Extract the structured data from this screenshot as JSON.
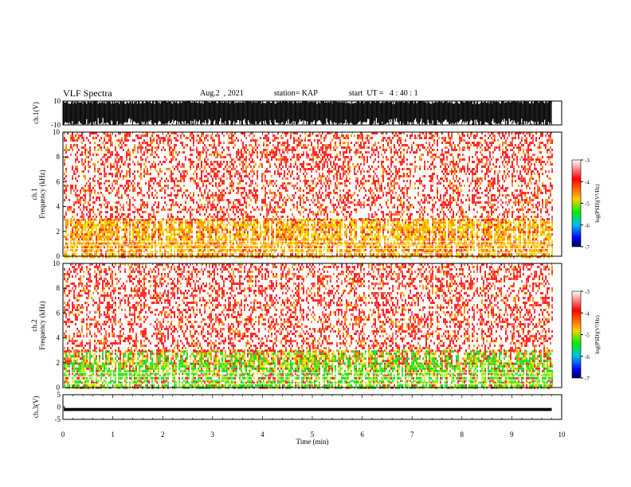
{
  "header": {
    "title": "VLF Spectra",
    "date": "Aug.2  , 2021",
    "station": "station= KAP",
    "start_ut": "start  UT =   4 : 40 : 1"
  },
  "colors": {
    "background": "#ffffff",
    "ink": "#000000",
    "spec_low": "#ffffff",
    "spec_mid": "#ff2a2a",
    "spec_orange": "#ff9900",
    "spec_yellow": "#e6e600",
    "spec_green": "#22dd22"
  },
  "chart_data": [
    {
      "id": "ch1_waveform",
      "type": "line",
      "ylabel": "ch.1(V)",
      "xlim": [
        0,
        10
      ],
      "ylim": [
        -10,
        10
      ],
      "yticks": [
        "10",
        "-10"
      ],
      "description_values": {
        "amplitude_range_V": [
          -10,
          10
        ],
        "duration_min": 9.8
      }
    },
    {
      "id": "ch1_spectrogram",
      "type": "heatmap",
      "ylabel": "ch.1\nFrequency  (kHz)",
      "xlim": [
        0,
        10
      ],
      "ylim": [
        0,
        10
      ],
      "yticks": [
        "0",
        "2",
        "4",
        "6",
        "8",
        "10"
      ],
      "data_extent_min": 9.8,
      "bands_kHz": [
        {
          "from": 0.0,
          "to": 1.0,
          "level": "yellow-orange"
        },
        {
          "from": 1.0,
          "to": 3.0,
          "level": "yellow-orange"
        },
        {
          "from": 3.0,
          "to": 10.0,
          "level": "red"
        }
      ],
      "colorbar": {
        "label": "log(PSD)(V²/Hz)",
        "range": [
          -7,
          -3
        ],
        "ticks": [
          "-3",
          "-4",
          "-5",
          "-6",
          "-7"
        ]
      }
    },
    {
      "id": "ch2_spectrogram",
      "type": "heatmap",
      "ylabel": "ch.2\nFrequency  (kHz)",
      "xlim": [
        0,
        10
      ],
      "ylim": [
        0,
        10
      ],
      "yticks": [
        "0",
        "2",
        "4",
        "6",
        "8",
        "10"
      ],
      "data_extent_min": 9.8,
      "bands_kHz": [
        {
          "from": 0.0,
          "to": 2.0,
          "level": "green"
        },
        {
          "from": 2.0,
          "to": 3.0,
          "level": "green-yellow"
        },
        {
          "from": 3.0,
          "to": 10.0,
          "level": "red"
        }
      ],
      "colorbar": {
        "label": "log(PSD)(V²/Hz)",
        "range": [
          -7,
          -3
        ],
        "ticks": [
          "-3",
          "-4",
          "-5",
          "-6",
          "-7"
        ]
      }
    },
    {
      "id": "ch3_waveform",
      "type": "line",
      "ylabel": "ch.3(V)",
      "xlim": [
        0,
        10
      ],
      "ylim": [
        -5,
        5
      ],
      "yticks": [
        "5",
        "0",
        "-5"
      ],
      "description_values": {
        "center_V": -1.0,
        "amplitude_V": 0.6
      }
    }
  ],
  "x_axis": {
    "label": "Time  (min)",
    "ticks": [
      "0",
      "1",
      "2",
      "3",
      "4",
      "5",
      "6",
      "7",
      "8",
      "9",
      "10"
    ]
  }
}
